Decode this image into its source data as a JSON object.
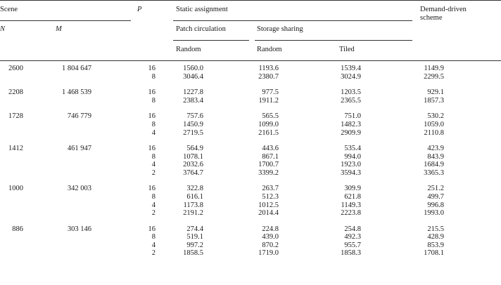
{
  "headers": {
    "scene": "Scene",
    "n": "N",
    "m": "M",
    "p": "P",
    "static_assignment": "Static assignment",
    "patch_circulation": "Patch circulation",
    "storage_sharing": "Storage sharing",
    "random_pc": "Random",
    "random_ss": "Random",
    "tiled": "Tiled",
    "demand_driven_1": "Demand-driven",
    "demand_driven_2": "scheme"
  },
  "groups": [
    {
      "n": "2600",
      "m": "1 804 647",
      "rows": [
        {
          "p": "16",
          "patch_random": "1560.0",
          "storage_random": "1193.6",
          "tiled": "1539.4",
          "demand": "1149.9"
        },
        {
          "p": "8",
          "patch_random": "3046.4",
          "storage_random": "2380.7",
          "tiled": "3024.9",
          "demand": "2299.5"
        }
      ]
    },
    {
      "n": "2208",
      "m": "1 468 539",
      "rows": [
        {
          "p": "16",
          "patch_random": "1227.8",
          "storage_random": "977.5",
          "tiled": "1203.5",
          "demand": "929.1"
        },
        {
          "p": "8",
          "patch_random": "2383.4",
          "storage_random": "1911.2",
          "tiled": "2365.5",
          "demand": "1857.3"
        }
      ]
    },
    {
      "n": "1728",
      "m": "746 779",
      "rows": [
        {
          "p": "16",
          "patch_random": "757.6",
          "storage_random": "565.5",
          "tiled": "751.0",
          "demand": "530.2"
        },
        {
          "p": "8",
          "patch_random": "1450.9",
          "storage_random": "1099.0",
          "tiled": "1482.3",
          "demand": "1059.0"
        },
        {
          "p": "4",
          "patch_random": "2719.5",
          "storage_random": "2161.5",
          "tiled": "2909.9",
          "demand": "2110.8"
        }
      ]
    },
    {
      "n": "1412",
      "m": "461 947",
      "rows": [
        {
          "p": "16",
          "patch_random": "564.9",
          "storage_random": "443.6",
          "tiled": "535.4",
          "demand": "423.9"
        },
        {
          "p": "8",
          "patch_random": "1078.1",
          "storage_random": "867.1",
          "tiled": "994.0",
          "demand": "843.9"
        },
        {
          "p": "4",
          "patch_random": "2032.6",
          "storage_random": "1700.7",
          "tiled": "1923.0",
          "demand": "1684.9"
        },
        {
          "p": "2",
          "patch_random": "3764.7",
          "storage_random": "3399.2",
          "tiled": "3594.3",
          "demand": "3365.3"
        }
      ]
    },
    {
      "n": "1000",
      "m": "342 003",
      "rows": [
        {
          "p": "16",
          "patch_random": "322.8",
          "storage_random": "263.7",
          "tiled": "309.9",
          "demand": "251.2"
        },
        {
          "p": "8",
          "patch_random": "616.1",
          "storage_random": "512.3",
          "tiled": "621.8",
          "demand": "499.7"
        },
        {
          "p": "4",
          "patch_random": "1173.8",
          "storage_random": "1012.5",
          "tiled": "1149.3",
          "demand": "996.8"
        },
        {
          "p": "2",
          "patch_random": "2191.2",
          "storage_random": "2014.4",
          "tiled": "2223.8",
          "demand": "1993.0"
        }
      ]
    },
    {
      "n": "886",
      "m": "303 146",
      "rows": [
        {
          "p": "16",
          "patch_random": "274.4",
          "storage_random": "224.8",
          "tiled": "254.8",
          "demand": "215.5"
        },
        {
          "p": "8",
          "patch_random": "519.1",
          "storage_random": "439.0",
          "tiled": "492.3",
          "demand": "428.9"
        },
        {
          "p": "4",
          "patch_random": "997.2",
          "storage_random": "870.2",
          "tiled": "955.7",
          "demand": "853.9"
        },
        {
          "p": "2",
          "patch_random": "1858.5",
          "storage_random": "1719.0",
          "tiled": "1858.3",
          "demand": "1708.1"
        }
      ]
    }
  ]
}
